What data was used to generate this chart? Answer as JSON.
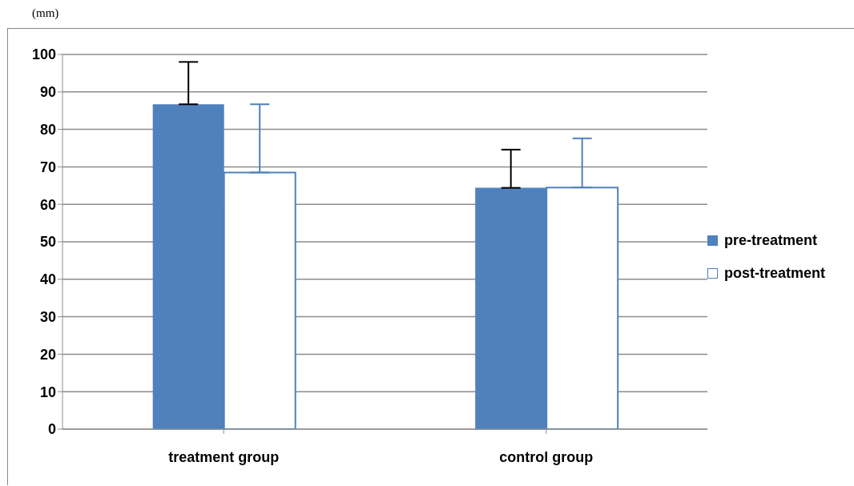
{
  "chart_data": {
    "type": "bar",
    "ylabel": "(mm)",
    "categories": [
      "treatment group",
      "control group"
    ],
    "series": [
      {
        "name": "pre-treatment",
        "color": "#4f81bd",
        "values": [
          86.7,
          64.4
        ],
        "errors": [
          [
            86.7,
            98.0
          ],
          [
            64.4,
            74.6
          ]
        ]
      },
      {
        "name": "post-treatment",
        "color": "#ffffff",
        "values": [
          68.5,
          64.5
        ],
        "errors": [
          [
            68.5,
            86.7
          ],
          [
            64.5,
            77.6
          ]
        ]
      }
    ],
    "ylim": [
      0,
      100
    ],
    "yticks": [
      0,
      10,
      20,
      30,
      40,
      50,
      60,
      70,
      80,
      90,
      100
    ],
    "grid": "y",
    "legend": "right"
  }
}
